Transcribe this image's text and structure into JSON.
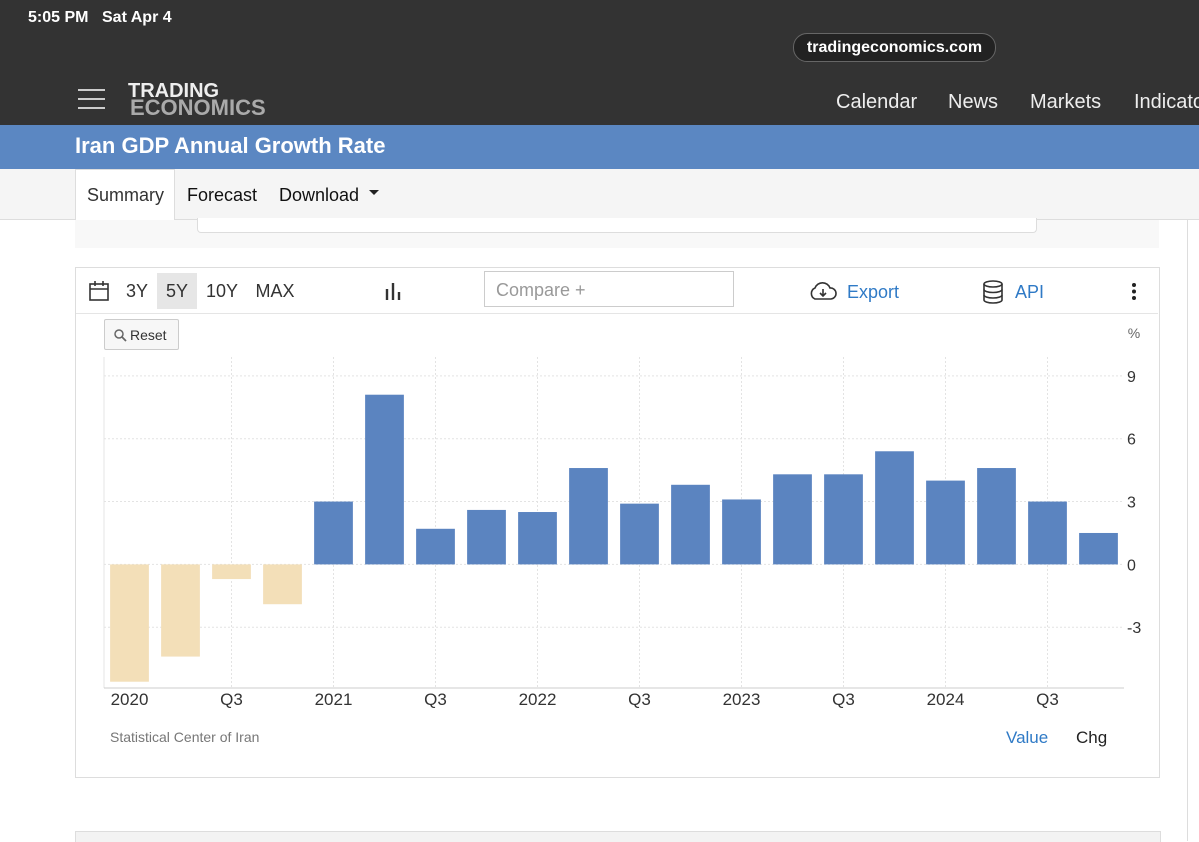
{
  "status": {
    "time": "5:05 PM",
    "date": "Sat Apr 4"
  },
  "browser": {
    "url": "tradingeconomics.com"
  },
  "header": {
    "logo_line1": "TRADING",
    "logo_line2": "ECONOMICS",
    "nav": [
      "Calendar",
      "News",
      "Markets",
      "Indicato"
    ]
  },
  "page": {
    "title": "Iran GDP Annual Growth Rate"
  },
  "tabs": [
    "Summary",
    "Forecast",
    "Download"
  ],
  "toolbar": {
    "ranges": [
      "3Y",
      "5Y",
      "10Y",
      "MAX"
    ],
    "compare": "Compare +",
    "export": "Export",
    "api": "API",
    "reset": "Reset"
  },
  "chart_data": {
    "type": "bar",
    "unit": "%",
    "categories": [
      "2020",
      null,
      "Q3",
      null,
      "2021",
      null,
      "Q3",
      null,
      "2022",
      null,
      "Q3",
      null,
      "2023",
      null,
      "Q3",
      null,
      "2024",
      null,
      "Q3",
      null
    ],
    "values": [
      -5.6,
      -4.4,
      -0.7,
      -1.9,
      3.0,
      8.1,
      1.7,
      2.6,
      2.5,
      4.6,
      2.9,
      3.8,
      3.1,
      4.3,
      4.3,
      5.4,
      4.0,
      4.6,
      3.0,
      1.5
    ],
    "color": "#5b84c0",
    "negative_color": "#f3dfb8",
    "ylim": [
      -5.9,
      9.9
    ],
    "yticks": [
      -3,
      0,
      3,
      6,
      9
    ],
    "grid": true
  },
  "footer": {
    "source": "Statistical Center of Iran",
    "value": "Value",
    "chg": "Chg"
  }
}
